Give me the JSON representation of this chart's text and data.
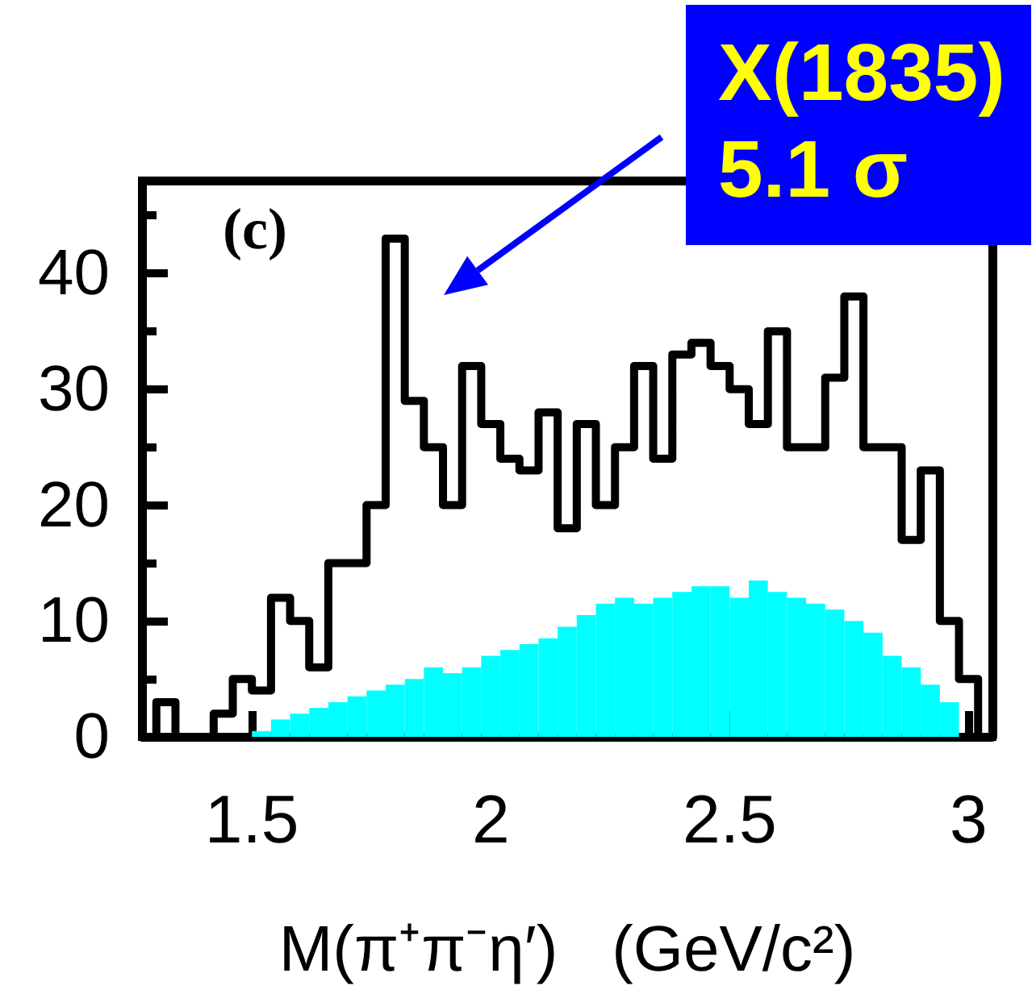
{
  "chart_data": {
    "type": "histogram",
    "xlabel": "M(π⁺π⁻η′)   (GeV/c²)",
    "bins": [
      1.3,
      1.34,
      1.38,
      1.42,
      1.46,
      1.5,
      1.54,
      1.58,
      1.62,
      1.66,
      1.7,
      1.74,
      1.78,
      1.82,
      1.86,
      1.9,
      1.94,
      1.98,
      2.02,
      2.06,
      2.1,
      2.14,
      2.18,
      2.22,
      2.26,
      2.3,
      2.34,
      2.38,
      2.42,
      2.46,
      2.5,
      2.54,
      2.58,
      2.62,
      2.66,
      2.7,
      2.74,
      2.78,
      2.82,
      2.86,
      2.9,
      2.94,
      2.98,
      3.02
    ],
    "series": [
      {
        "type": "step",
        "color": "#000000",
        "x": [
          1.3,
          1.3,
          1.34,
          1.38,
          1.42,
          1.46,
          1.5,
          1.54,
          1.58,
          1.62,
          1.66,
          1.7,
          1.74,
          1.78,
          1.82,
          1.86,
          1.9,
          1.94,
          1.98,
          2.02,
          2.06,
          2.1,
          2.14,
          2.18,
          2.22,
          2.26,
          2.3,
          2.34,
          2.38,
          2.42,
          2.46,
          2.5,
          2.54,
          2.58,
          2.62,
          2.66,
          2.7,
          2.74,
          2.78,
          2.82,
          2.86,
          2.9,
          2.94,
          2.98,
          3.02
        ],
        "values": [
          0,
          3,
          0,
          0,
          2,
          5,
          4,
          12,
          10,
          6,
          15,
          15,
          20,
          43,
          29,
          25,
          20,
          32,
          27,
          24,
          23,
          28,
          18,
          27,
          20,
          25,
          32,
          24,
          33,
          34,
          32,
          30,
          27,
          35,
          25,
          25,
          31,
          38,
          25,
          25,
          17,
          23,
          10,
          5,
          0
        ]
      },
      {
        "color": "#00ffff",
        "values": [
          0,
          0,
          0,
          0,
          0,
          0.5,
          1.5,
          2,
          2.5,
          3,
          3.5,
          4,
          4.5,
          5,
          6,
          5.5,
          6,
          7,
          7.5,
          8,
          8.5,
          9.5,
          10.5,
          11.5,
          12,
          11.5,
          12,
          12.5,
          13,
          13,
          12,
          13.5,
          12.5,
          12,
          11.5,
          11,
          10,
          9,
          7,
          6,
          4.5,
          3,
          0
        ]
      }
    ],
    "xlim": [
      1.27,
      3.05
    ],
    "xticks": [
      1.5,
      2,
      2.5,
      3
    ],
    "ylim": [
      0,
      48
    ],
    "yticks": [
      0,
      10,
      20,
      30,
      40
    ],
    "annotations": [
      "(c)",
      "X(1835)",
      "5.1 σ"
    ]
  }
}
